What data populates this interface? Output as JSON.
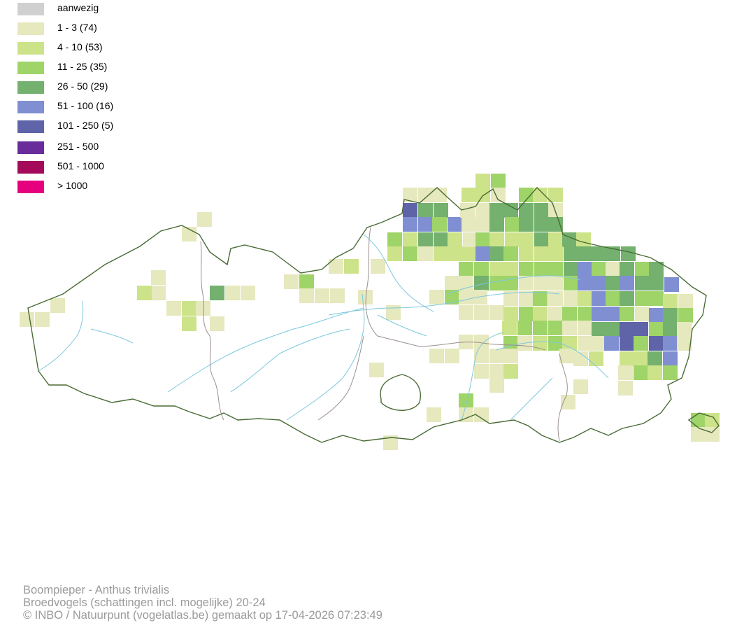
{
  "legend": {
    "items": [
      {
        "label": "aanwezig",
        "color": "#d0d0d0"
      },
      {
        "label": "1 - 3 (74)",
        "color": "#e6e8be"
      },
      {
        "label": "4 - 10 (53)",
        "color": "#cde38a"
      },
      {
        "label": "11 - 25 (35)",
        "color": "#9fd468"
      },
      {
        "label": "26 - 50 (29)",
        "color": "#74b06e"
      },
      {
        "label": "51 - 100 (16)",
        "color": "#7f8fd2"
      },
      {
        "label": "101 - 250 (5)",
        "color": "#5f63a8"
      },
      {
        "label": "251 - 500",
        "color": "#6a2c9a"
      },
      {
        "label": "501 - 1000",
        "color": "#a4095a"
      },
      {
        "label": "> 1000",
        "color": "#e6007e"
      }
    ]
  },
  "map": {
    "outline_color": "#4a6b35",
    "province_border_color": "#9c8f8f",
    "river_color": "#7cc8de"
  },
  "footer": {
    "line1": "Boompieper - Anthus trivialis",
    "line2": "Broedvogels (schattingen incl. mogelijke) 20-24",
    "line3": "© INBO / Natuurpunt (vogelatlas.be) gemaakt op 17-04-2026 07:23:49"
  }
}
